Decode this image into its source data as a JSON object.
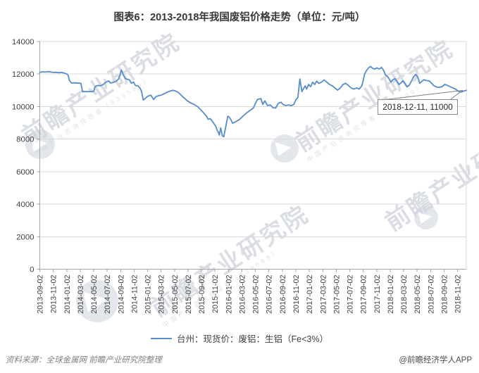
{
  "title": "图表6：2013-2018年我国废铝价格走势（单位：元/吨）",
  "legend": {
    "label": "台州：现货价：废铝：生铝（Fe<3%）"
  },
  "annotation": {
    "label": "2018-12-11, 11000"
  },
  "source_note": "资料来源：全球金属网  前瞻产业研究院整理",
  "credit": "@前瞻经济学人APP",
  "watermark": {
    "brand": "前瞻产业研究院",
    "tagline": "中国产业咨询领导者（839599）"
  },
  "chart_data": {
    "type": "line",
    "title": "图表6：2013-2018年我国废铝价格走势（单位：元/吨）",
    "unit": "元/吨",
    "series_name": "台州：现货价：废铝：生铝（Fe<3%）",
    "line_color": "#548CCC",
    "grid": true,
    "legend_position": "bottom",
    "ylim": [
      0,
      14000
    ],
    "yticks": [
      0,
      2000,
      4000,
      6000,
      8000,
      10000,
      12000,
      14000
    ],
    "x_axis": {
      "start_label": "2013-09-02",
      "end_label": "2018-12-11",
      "total_months": 63.3,
      "tick_interval_months": 2
    },
    "xtick_labels": [
      "2013-09-02",
      "2013-11-02",
      "2014-01-02",
      "2014-03-02",
      "2014-05-02",
      "2014-07-02",
      "2014-09-02",
      "2014-11-02",
      "2015-01-02",
      "2015-03-02",
      "2015-05-02",
      "2015-07-02",
      "2015-09-02",
      "2015-11-02",
      "2016-01-02",
      "2016-03-02",
      "2016-05-02",
      "2016-07-02",
      "2016-09-02",
      "2016-11-02",
      "2017-01-02",
      "2017-03-02",
      "2017-05-02",
      "2017-07-02",
      "2017-09-02",
      "2017-11-02",
      "2018-01-02",
      "2018-03-02",
      "2018-05-02",
      "2018-07-02",
      "2018-09-02",
      "2018-11-02"
    ],
    "annotation": {
      "date": "2018-12-11",
      "value": 11000,
      "x_months": 63.3,
      "label": "2018-12-11, 11000"
    },
    "series": [
      [
        0,
        12100
      ],
      [
        0.4,
        12140
      ],
      [
        0.8,
        12120
      ],
      [
        1.2,
        12150
      ],
      [
        1.6,
        12130
      ],
      [
        2,
        12100
      ],
      [
        2.4,
        12110
      ],
      [
        2.8,
        12080
      ],
      [
        3.2,
        12100
      ],
      [
        3.6,
        12060
      ],
      [
        4,
        12000
      ],
      [
        4.2,
        11930
      ],
      [
        4.4,
        11600
      ],
      [
        4.7,
        11450
      ],
      [
        5.2,
        11460
      ],
      [
        5.7,
        11440
      ],
      [
        6.1,
        11430
      ],
      [
        6.35,
        10920
      ],
      [
        7,
        10920
      ],
      [
        7.6,
        10920
      ],
      [
        8,
        10930
      ],
      [
        8.2,
        11220
      ],
      [
        8.6,
        11300
      ],
      [
        9,
        11280
      ],
      [
        9.4,
        11350
      ],
      [
        9.8,
        11500
      ],
      [
        10.2,
        11580
      ],
      [
        10.5,
        11450
      ],
      [
        10.9,
        11480
      ],
      [
        11.3,
        11550
      ],
      [
        11.7,
        11700
      ],
      [
        11.9,
        11950
      ],
      [
        12.1,
        12250
      ],
      [
        12.4,
        11950
      ],
      [
        12.7,
        11720
      ],
      [
        13,
        11680
      ],
      [
        13.3,
        11640
      ],
      [
        13.6,
        11430
      ],
      [
        13.9,
        11510
      ],
      [
        14.2,
        11300
      ],
      [
        14.6,
        11260
      ],
      [
        14.9,
        11120
      ],
      [
        15.1,
        10940
      ],
      [
        15.35,
        10400
      ],
      [
        15.6,
        10480
      ],
      [
        15.8,
        10560
      ],
      [
        16.1,
        10650
      ],
      [
        16.5,
        10700
      ],
      [
        16.9,
        10430
      ],
      [
        17.2,
        10600
      ],
      [
        17.6,
        10670
      ],
      [
        18,
        10700
      ],
      [
        18.4,
        10780
      ],
      [
        18.9,
        10880
      ],
      [
        19.4,
        10960
      ],
      [
        19.8,
        11000
      ],
      [
        20.2,
        10950
      ],
      [
        20.6,
        10860
      ],
      [
        21.1,
        10650
      ],
      [
        21.5,
        10500
      ],
      [
        21.9,
        10350
      ],
      [
        22.4,
        10220
      ],
      [
        22.8,
        10150
      ],
      [
        23.4,
        10000
      ],
      [
        23.9,
        9800
      ],
      [
        24.4,
        9570
      ],
      [
        24.7,
        9430
      ],
      [
        25,
        9220
      ],
      [
        25.3,
        9260
      ],
      [
        25.6,
        9100
      ],
      [
        25.85,
        8950
      ],
      [
        26.1,
        8800
      ],
      [
        26.3,
        8550
      ],
      [
        26.5,
        8420
      ],
      [
        26.65,
        8250
      ],
      [
        26.85,
        8690
      ],
      [
        27.1,
        8200
      ],
      [
        27.3,
        8140
      ],
      [
        27.55,
        8650
      ],
      [
        27.9,
        9410
      ],
      [
        28.1,
        9350
      ],
      [
        28.35,
        9200
      ],
      [
        28.6,
        8980
      ],
      [
        28.85,
        9020
      ],
      [
        29.2,
        9100
      ],
      [
        29.6,
        9190
      ],
      [
        30.2,
        9430
      ],
      [
        30.7,
        9620
      ],
      [
        31.2,
        9760
      ],
      [
        31.7,
        9910
      ],
      [
        32,
        10200
      ],
      [
        32.3,
        10440
      ],
      [
        32.6,
        10470
      ],
      [
        32.8,
        10490
      ],
      [
        33.1,
        10130
      ],
      [
        33.4,
        10350
      ],
      [
        33.8,
        10060
      ],
      [
        34.2,
        10100
      ],
      [
        34.6,
        9930
      ],
      [
        35,
        9910
      ],
      [
        35.4,
        10200
      ],
      [
        35.8,
        10270
      ],
      [
        36.1,
        10130
      ],
      [
        36.5,
        10060
      ],
      [
        36.9,
        10100
      ],
      [
        37.3,
        10060
      ],
      [
        37.7,
        10130
      ],
      [
        38,
        10420
      ],
      [
        38.3,
        10560
      ],
      [
        38.6,
        11700
      ],
      [
        38.75,
        11300
      ],
      [
        38.9,
        10920
      ],
      [
        39.1,
        11070
      ],
      [
        39.4,
        11280
      ],
      [
        39.6,
        11070
      ],
      [
        39.9,
        11360
      ],
      [
        40.2,
        11220
      ],
      [
        40.5,
        11500
      ],
      [
        40.8,
        11360
      ],
      [
        41.1,
        11570
      ],
      [
        41.4,
        11430
      ],
      [
        41.8,
        11500
      ],
      [
        42.2,
        11640
      ],
      [
        42.6,
        11500
      ],
      [
        43,
        11360
      ],
      [
        43.4,
        11280
      ],
      [
        43.8,
        11150
      ],
      [
        44.2,
        11010
      ],
      [
        44.6,
        11150
      ],
      [
        45,
        11360
      ],
      [
        45.4,
        11430
      ],
      [
        45.8,
        11300
      ],
      [
        46.2,
        11150
      ],
      [
        46.6,
        11080
      ],
      [
        47,
        11150
      ],
      [
        47.4,
        11080
      ],
      [
        47.8,
        11280
      ],
      [
        48,
        11600
      ],
      [
        48.2,
        12000
      ],
      [
        48.5,
        12230
      ],
      [
        48.8,
        12380
      ],
      [
        49.1,
        12470
      ],
      [
        49.4,
        12350
      ],
      [
        49.7,
        12300
      ],
      [
        50,
        12380
      ],
      [
        50.4,
        12310
      ],
      [
        50.7,
        12410
      ],
      [
        51,
        12250
      ],
      [
        51.3,
        11950
      ],
      [
        51.7,
        11800
      ],
      [
        52.1,
        11510
      ],
      [
        52.4,
        11650
      ],
      [
        52.7,
        11720
      ],
      [
        53,
        11550
      ],
      [
        53.3,
        11360
      ],
      [
        53.6,
        11450
      ],
      [
        53.9,
        11580
      ],
      [
        54.2,
        11400
      ],
      [
        54.5,
        11220
      ],
      [
        54.8,
        11300
      ],
      [
        55.2,
        11600
      ],
      [
        55.5,
        11850
      ],
      [
        55.8,
        11980
      ],
      [
        56.1,
        11800
      ],
      [
        56.4,
        11430
      ],
      [
        56.7,
        11550
      ],
      [
        57,
        11650
      ],
      [
        57.4,
        11600
      ],
      [
        57.8,
        11580
      ],
      [
        58.1,
        11450
      ],
      [
        58.5,
        11280
      ],
      [
        58.9,
        11200
      ],
      [
        59.3,
        11180
      ],
      [
        59.7,
        11230
      ],
      [
        60.1,
        11360
      ],
      [
        60.5,
        11300
      ],
      [
        60.9,
        11220
      ],
      [
        61.3,
        11150
      ],
      [
        61.7,
        11080
      ],
      [
        62.1,
        10940
      ],
      [
        62.5,
        10900
      ],
      [
        62.9,
        10950
      ],
      [
        63.3,
        11000
      ]
    ]
  }
}
